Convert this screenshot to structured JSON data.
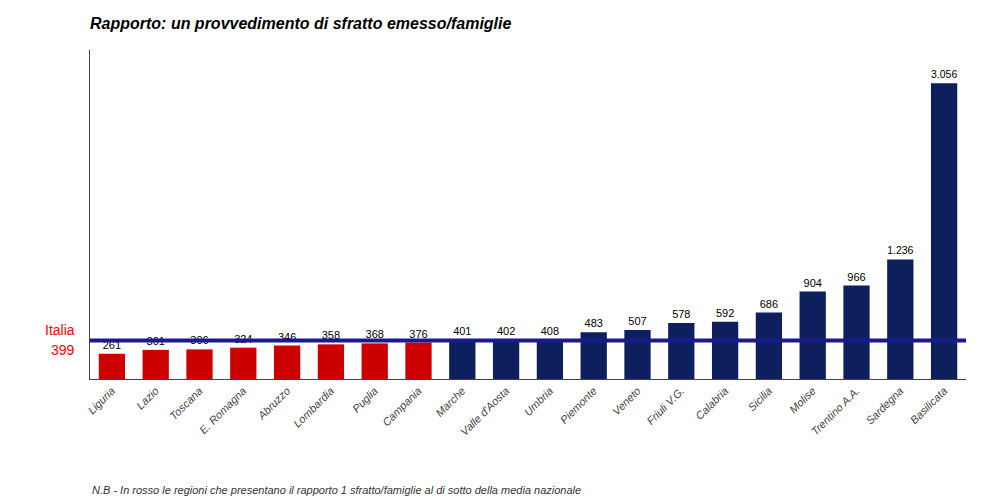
{
  "chart_data": {
    "type": "bar",
    "title": "Rapporto: un provvedimento di sfratto emesso/famiglie",
    "footnote": "N.B - In rosso le regioni che presentano il rapporto 1 sfratto/famiglie al di sotto della media nazionale",
    "categories": [
      "Liguria",
      "Lazio",
      "Toscana",
      "E. Romagna",
      "Abruzzo",
      "Lombardia",
      "Puglia",
      "Campania",
      "Marche",
      "Valle d'Aosta",
      "Umbria",
      "Piemonte",
      "Veneto",
      "Friuli V.G.",
      "Calabria",
      "Sicilia",
      "Molise",
      "Trentino A.A.",
      "Sardegna",
      "Basilicata"
    ],
    "values": [
      261,
      301,
      306,
      324,
      346,
      358,
      368,
      376,
      401,
      402,
      408,
      483,
      507,
      578,
      592,
      686,
      904,
      966,
      1236,
      3056
    ],
    "value_labels": [
      "261",
      "301",
      "306",
      "324",
      "346",
      "358",
      "368",
      "376",
      "401",
      "402",
      "408",
      "483",
      "507",
      "578",
      "592",
      "686",
      "904",
      "966",
      "1.236",
      "3.056"
    ],
    "colors": [
      "#cc0000",
      "#cc0000",
      "#cc0000",
      "#cc0000",
      "#cc0000",
      "#cc0000",
      "#cc0000",
      "#cc0000",
      "#0d1f5c",
      "#0d1f5c",
      "#0d1f5c",
      "#0d1f5c",
      "#0d1f5c",
      "#0d1f5c",
      "#0d1f5c",
      "#0d1f5c",
      "#0d1f5c",
      "#0d1f5c",
      "#0d1f5c",
      "#0d1f5c"
    ],
    "reference_line": {
      "value": 399,
      "color": "#1a1a8c",
      "label": [
        "Italia",
        "399"
      ],
      "label_color": "red"
    },
    "ylim": [
      0,
      3400
    ],
    "data_labels": true,
    "tick_labels": "x",
    "grid": false
  }
}
